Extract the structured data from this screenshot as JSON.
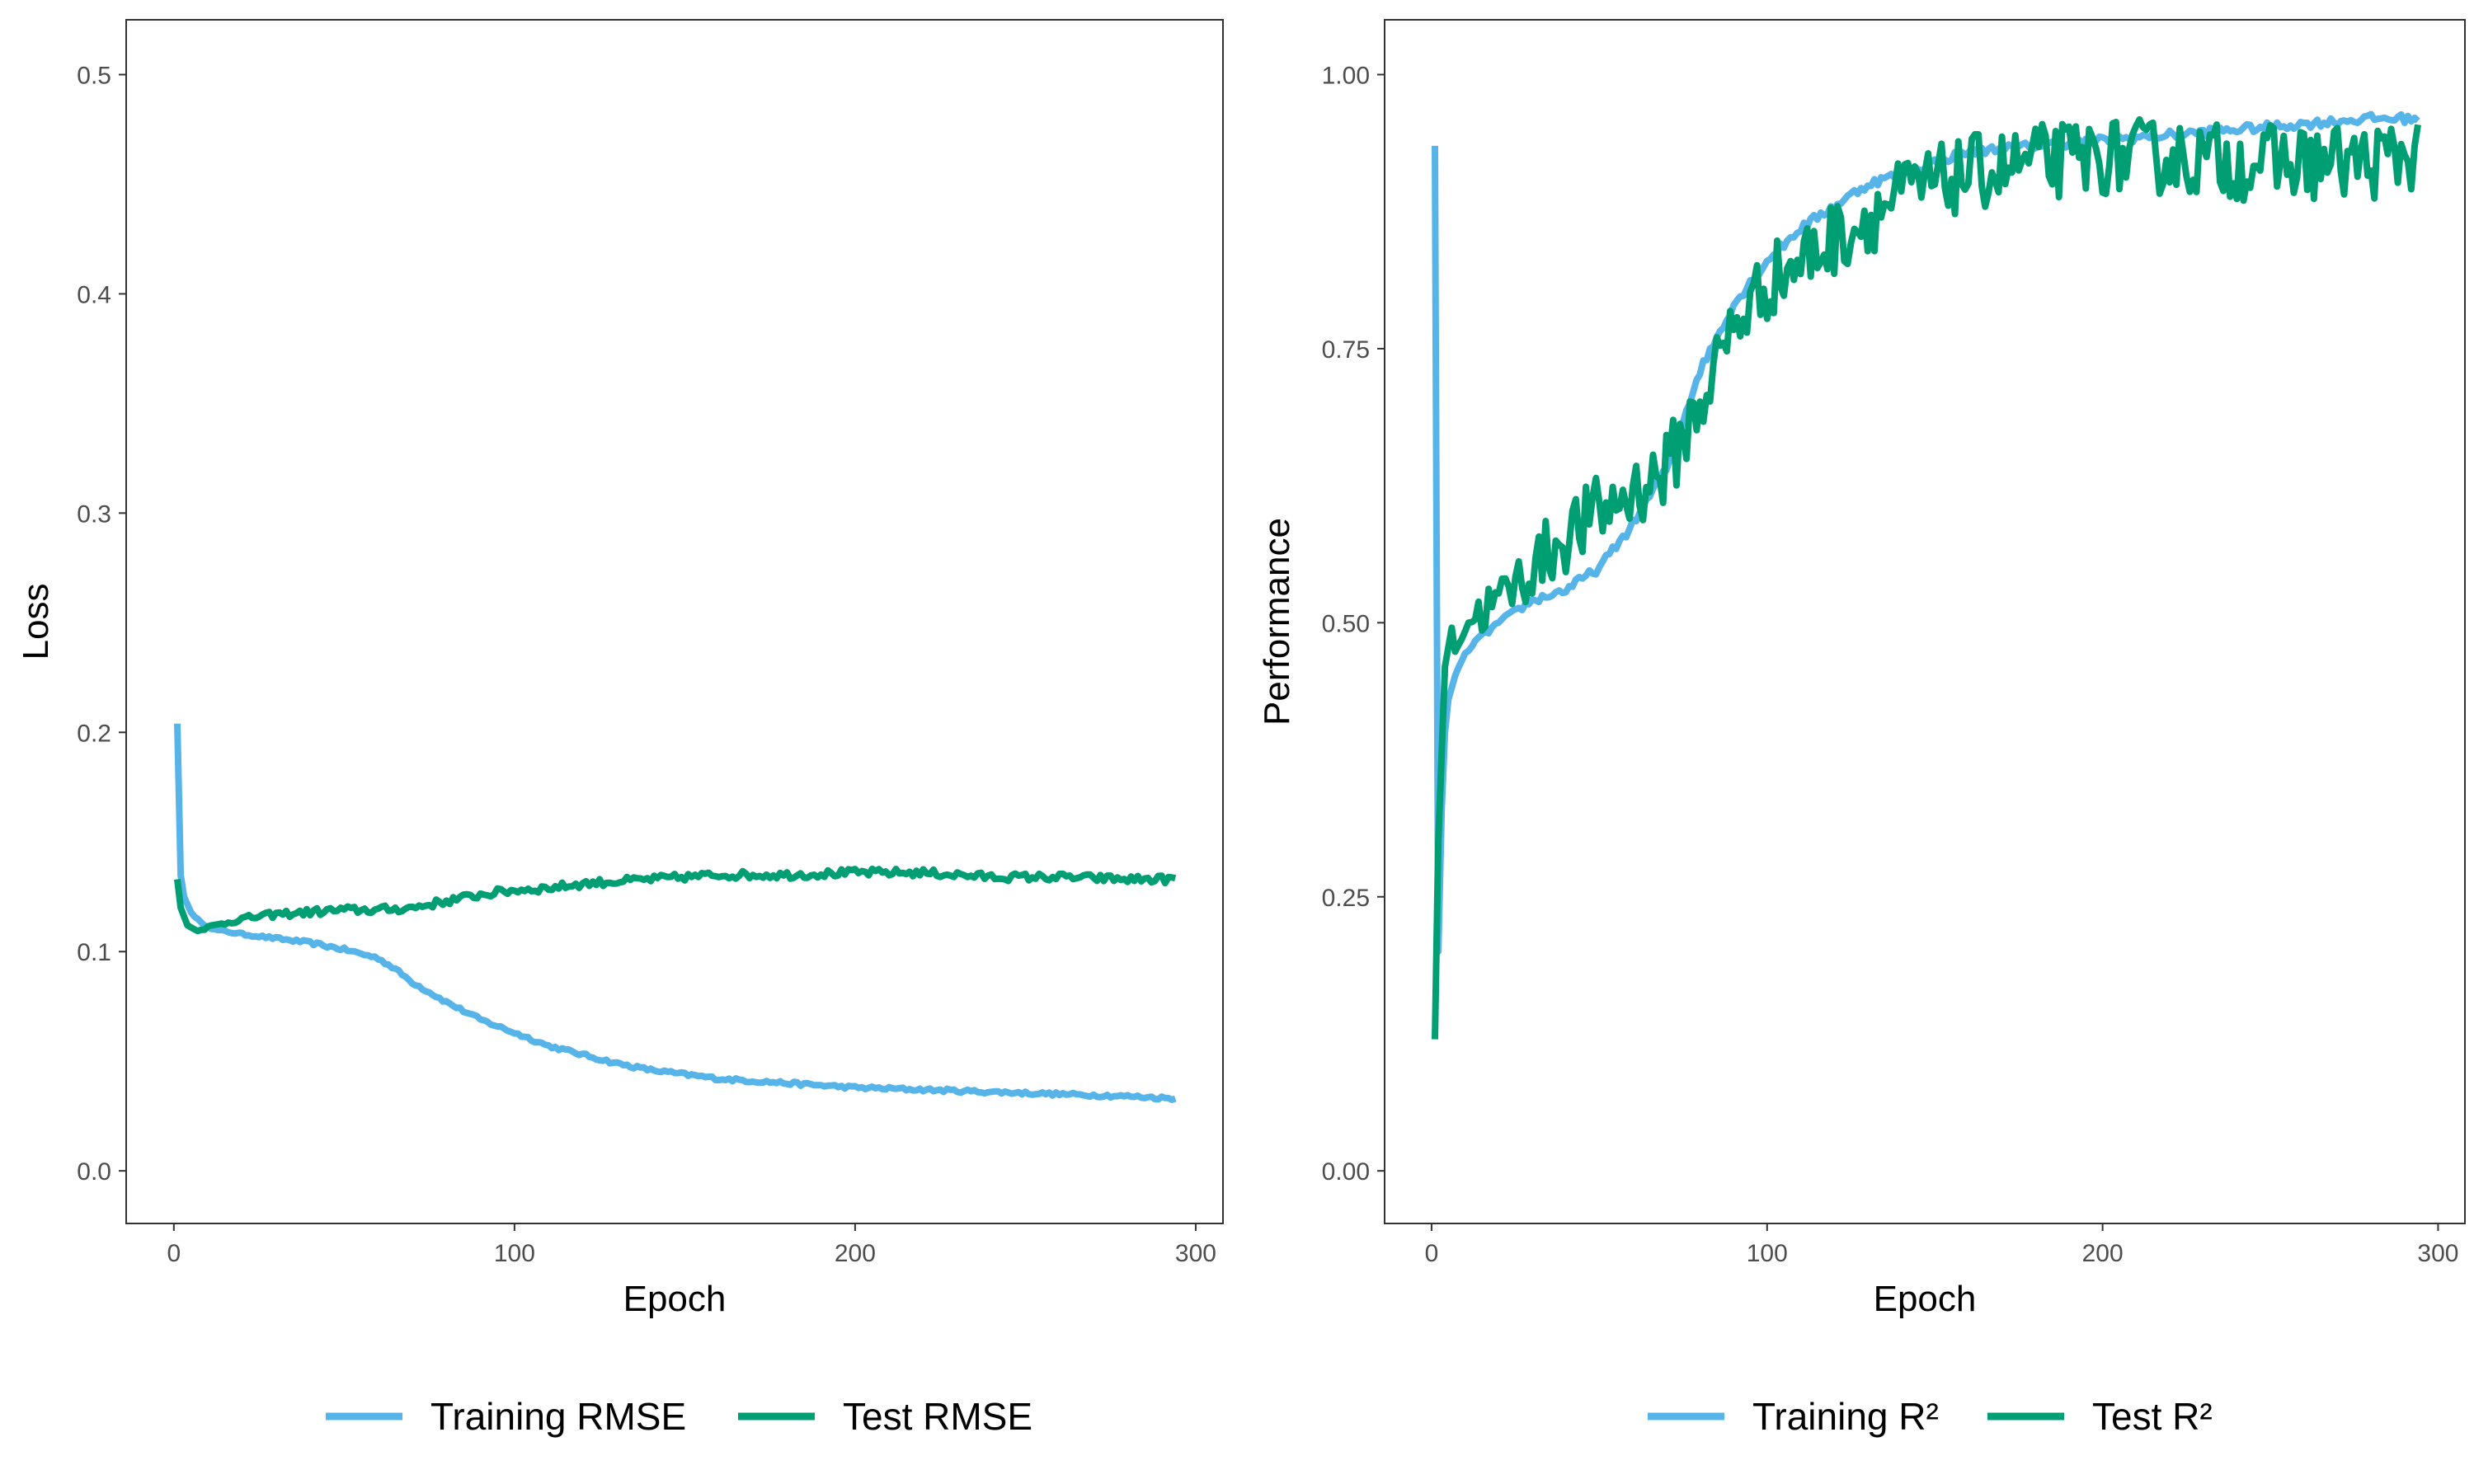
{
  "colors": {
    "training": "#56B4E9",
    "test": "#009E73"
  },
  "chart_data": [
    {
      "type": "line",
      "title": "",
      "xlabel": "Epoch",
      "ylabel": "Loss",
      "xlim": [
        -14,
        308
      ],
      "ylim": [
        -0.024,
        0.525
      ],
      "xticks": [
        0,
        100,
        200,
        300
      ],
      "yticks": [
        0.0,
        0.1,
        0.2,
        0.3,
        0.4,
        0.5
      ],
      "yticklabels": [
        "0.0",
        "0.1",
        "0.2",
        "0.3",
        "0.4",
        "0.5"
      ],
      "grid": false,
      "legend_position": "bottom",
      "noise_amplitude": [
        0.0008,
        0.0018
      ],
      "series": [
        {
          "name": "Training RMSE",
          "color": "#56B4E9",
          "x": [
            1,
            2,
            3,
            5,
            8,
            12,
            20,
            30,
            40,
            50,
            60,
            65,
            70,
            80,
            90,
            100,
            110,
            120,
            130,
            140,
            150,
            160,
            170,
            180,
            190,
            200,
            220,
            240,
            260,
            280,
            294
          ],
          "y": [
            0.204,
            0.135,
            0.125,
            0.118,
            0.113,
            0.11,
            0.108,
            0.106,
            0.104,
            0.101,
            0.097,
            0.092,
            0.086,
            0.077,
            0.069,
            0.063,
            0.057,
            0.053,
            0.049,
            0.046,
            0.044,
            0.042,
            0.041,
            0.04,
            0.039,
            0.038,
            0.037,
            0.036,
            0.035,
            0.034,
            0.033
          ]
        },
        {
          "name": "Test RMSE",
          "color": "#009E73",
          "x": [
            1,
            2,
            4,
            6,
            10,
            15,
            20,
            30,
            40,
            50,
            60,
            70,
            80,
            90,
            100,
            110,
            120,
            140,
            160,
            180,
            200,
            220,
            240,
            260,
            280,
            294
          ],
          "y": [
            0.133,
            0.12,
            0.112,
            0.11,
            0.111,
            0.113,
            0.115,
            0.117,
            0.118,
            0.119,
            0.119,
            0.12,
            0.123,
            0.126,
            0.128,
            0.129,
            0.131,
            0.133,
            0.135,
            0.135,
            0.136,
            0.136,
            0.134,
            0.134,
            0.133,
            0.133
          ]
        }
      ]
    },
    {
      "type": "line",
      "title": "",
      "xlabel": "Epoch",
      "ylabel": "Performance",
      "xlim": [
        -14,
        308
      ],
      "ylim": [
        -0.048,
        1.05
      ],
      "xticks": [
        0,
        100,
        200,
        300
      ],
      "yticks": [
        0.0,
        0.25,
        0.5,
        0.75,
        1.0
      ],
      "yticklabels": [
        "0.00",
        "0.25",
        "0.50",
        "0.75",
        "1.00"
      ],
      "grid": false,
      "legend_position": "bottom",
      "noise_amplitude": [
        0.004,
        0.035
      ],
      "series": [
        {
          "name": "Training R²",
          "color": "#56B4E9",
          "x": [
            1,
            2,
            3,
            4,
            5,
            8,
            12,
            20,
            30,
            40,
            50,
            60,
            70,
            80,
            90,
            100,
            110,
            120,
            130,
            140,
            150,
            160,
            180,
            200,
            220,
            240,
            260,
            280,
            294
          ],
          "y": [
            0.935,
            0.2,
            0.33,
            0.4,
            0.43,
            0.46,
            0.48,
            0.5,
            0.52,
            0.53,
            0.55,
            0.59,
            0.64,
            0.73,
            0.79,
            0.83,
            0.86,
            0.88,
            0.9,
            0.91,
            0.92,
            0.93,
            0.935,
            0.94,
            0.945,
            0.95,
            0.955,
            0.96,
            0.96
          ]
        },
        {
          "name": "Test R²",
          "color": "#009E73",
          "x": [
            1,
            2,
            4,
            6,
            10,
            20,
            30,
            40,
            50,
            60,
            70,
            80,
            90,
            100,
            110,
            120,
            130,
            140,
            150,
            160,
            180,
            200,
            220,
            240,
            260,
            280,
            294
          ],
          "y": [
            0.12,
            0.3,
            0.46,
            0.48,
            0.5,
            0.52,
            0.55,
            0.58,
            0.6,
            0.62,
            0.64,
            0.7,
            0.77,
            0.81,
            0.83,
            0.85,
            0.87,
            0.89,
            0.9,
            0.91,
            0.92,
            0.925,
            0.925,
            0.92,
            0.92,
            0.92,
            0.93
          ]
        }
      ]
    }
  ]
}
